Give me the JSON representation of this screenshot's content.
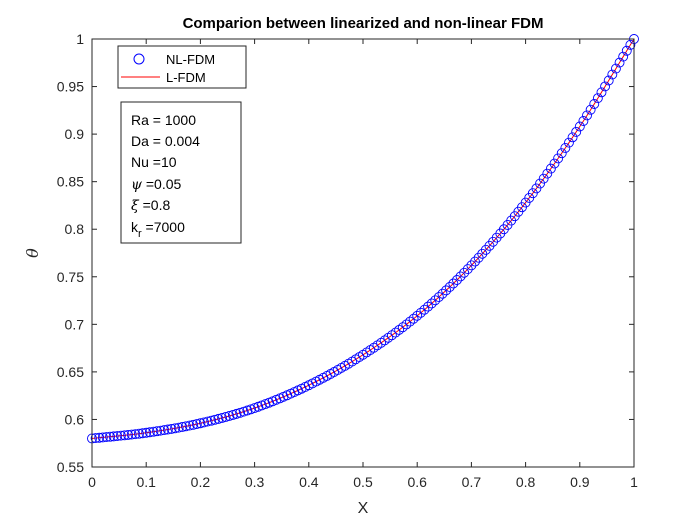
{
  "chart_data": {
    "type": "line",
    "title": "Comparion between linearized and non-linear FDM",
    "xlabel": "X",
    "ylabel": "θ",
    "xlim": [
      0,
      1
    ],
    "ylim": [
      0.55,
      1
    ],
    "x_ticks": [
      "0",
      "0.1",
      "0.2",
      "0.3",
      "0.4",
      "0.5",
      "0.6",
      "0.7",
      "0.8",
      "0.9",
      "1"
    ],
    "y_ticks": [
      "0.55",
      "0.6",
      "0.65",
      "0.7",
      "0.75",
      "0.8",
      "0.85",
      "0.9",
      "0.95",
      "1"
    ],
    "grid": false,
    "legend_position": "top-left",
    "series": [
      {
        "name": "NL-FDM",
        "style": "markers",
        "marker": "circle",
        "color": "#0000ff",
        "x": [
          0,
          0.1,
          0.2,
          0.3,
          0.4,
          0.5,
          0.6,
          0.7,
          0.8,
          0.9,
          1.0
        ],
        "y": [
          0.58,
          0.586,
          0.596,
          0.612,
          0.636,
          0.668,
          0.709,
          0.762,
          0.828,
          0.908,
          1.0
        ]
      },
      {
        "name": "L-FDM",
        "style": "line",
        "color": "#ff0000",
        "x": [
          0,
          0.1,
          0.2,
          0.3,
          0.4,
          0.5,
          0.6,
          0.7,
          0.8,
          0.9,
          1.0
        ],
        "y": [
          0.58,
          0.586,
          0.596,
          0.612,
          0.636,
          0.668,
          0.709,
          0.762,
          0.828,
          0.908,
          1.0
        ]
      }
    ],
    "annotation_lines": [
      {
        "pre": "Ra = 1000",
        "sym": "",
        "post": ""
      },
      {
        "pre": "Da = 0.004",
        "sym": "",
        "post": ""
      },
      {
        "pre": "Nu =10",
        "sym": "",
        "post": ""
      },
      {
        "pre": "",
        "sym": "ψ",
        "post": " =0.05"
      },
      {
        "pre": "",
        "sym": "ξ",
        "post": " =0.8"
      },
      {
        "pre": "k",
        "sym": "",
        "post": " =7000",
        "sub": "r"
      }
    ]
  }
}
